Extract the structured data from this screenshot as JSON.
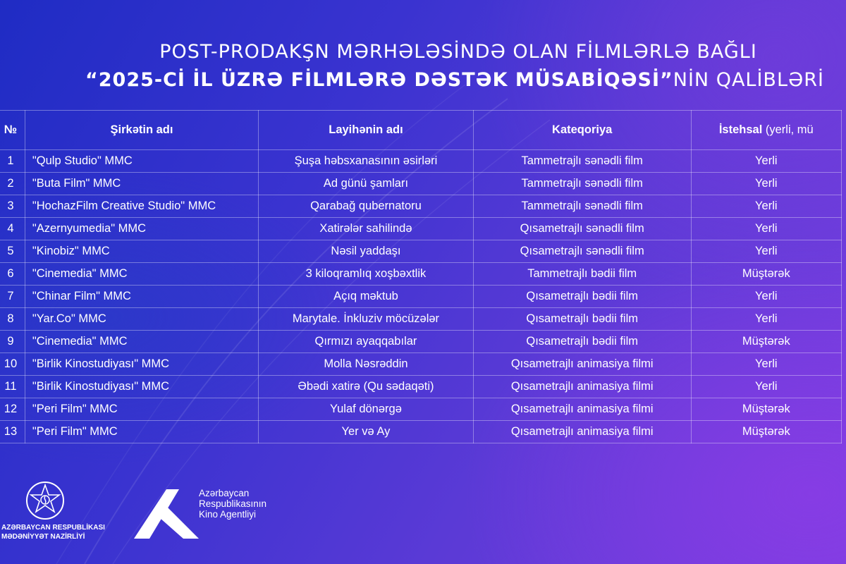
{
  "title": {
    "line1": "POST-PRODAKŞN MƏRHƏLƏSİNDƏ OLAN FİLMLƏRLƏ BAĞLI",
    "line2_bold": "“2025-Cİ İL ÜZRƏ FİLMLƏRƏ DƏSTƏK MÜSABİQƏSİ”",
    "line2_rest": "NİN QALİBLƏRİ"
  },
  "table": {
    "headers": {
      "no": "№",
      "company": "Şirkətin adı",
      "project": "Layihənin adı",
      "category": "Kateqoriya",
      "production": "İstehsal",
      "production_sub": " (yerli, mü"
    },
    "rows": [
      {
        "no": "1",
        "company": "\"Qulp Studio\" MMC",
        "project": "Şuşa həbsxanasının əsirləri",
        "category": "Tammetrajlı sənədli film",
        "production": "Yerli"
      },
      {
        "no": "2",
        "company": "\"Buta Film\" MMC",
        "project": "Ad günü şamları",
        "category": "Tammetrajlı sənədli film",
        "production": "Yerli"
      },
      {
        "no": "3",
        "company": "\"HochazFilm Creative Studio\" MMC",
        "project": "Qarabağ qubernatoru",
        "category": "Tammetrajlı sənədli film",
        "production": "Yerli"
      },
      {
        "no": "4",
        "company": "\"Azernyumedia\" MMC",
        "project": "Xatirələr sahilində",
        "category": "Qısametrajlı sənədli film",
        "production": "Yerli"
      },
      {
        "no": "5",
        "company": "\"Kinobiz\" MMC",
        "project": "Nəsil yaddaşı",
        "category": "Qısametrajlı sənədli film",
        "production": "Yerli"
      },
      {
        "no": "6",
        "company": "\"Cinemedia\" MMC",
        "project": "3 kiloqramlıq xoşbəxtlik",
        "category": "Tammetrajlı bədii film",
        "production": "Müştərək"
      },
      {
        "no": "7",
        "company": "\"Chinar Film\" MMC",
        "project": "Açıq məktub",
        "category": "Qısametrajlı bədii film",
        "production": "Yerli"
      },
      {
        "no": "8",
        "company": "\"Yar.Co\" MMC",
        "project": "Marytale. İnkluziv möcüzələr",
        "category": "Qısametrajlı bədii film",
        "production": "Yerli"
      },
      {
        "no": "9",
        "company": "\"Cinemedia\" MMC",
        "project": "Qırmızı ayaqqabılar",
        "category": "Qısametrajlı bədii film",
        "production": "Müştərək"
      },
      {
        "no": "10",
        "company": "\"Birlik Kinostudiyası\" MMC",
        "project": "Molla Nəsrəddin",
        "category": "Qısametrajlı animasiya filmi",
        "production": "Yerli"
      },
      {
        "no": "11",
        "company": "\"Birlik Kinostudiyası\" MMC",
        "project": "Əbədi xatirə  (Qu sədaqəti)",
        "category": "Qısametrajlı animasiya filmi",
        "production": "Yerli"
      },
      {
        "no": "12",
        "company": "\"Peri Film\" MMC",
        "project": "Yulaf dönərgə",
        "category": "Qısametrajlı animasiya filmi",
        "production": "Müştərək"
      },
      {
        "no": "13",
        "company": "\"Peri Film\" MMC",
        "project": "Yer və Ay",
        "category": "Qısametrajlı animasiya filmi",
        "production": "Müştərək"
      }
    ]
  },
  "logos": {
    "ministry": {
      "line1": "AZƏRBAYCAN RESPUBLİKASI",
      "line2": "MƏDƏNİYYƏT NAZİRLİYİ",
      "icon": "state-emblem-icon"
    },
    "agency": {
      "line1": "Azərbaycan",
      "line2": "Respublikasının",
      "line3": "Kino Agentliyi",
      "icon": "kino-agency-k-logo"
    }
  },
  "colors": {
    "bg_blue": "#1f2cc4",
    "bg_purple": "#7a3ee0",
    "text": "#ffffff"
  }
}
